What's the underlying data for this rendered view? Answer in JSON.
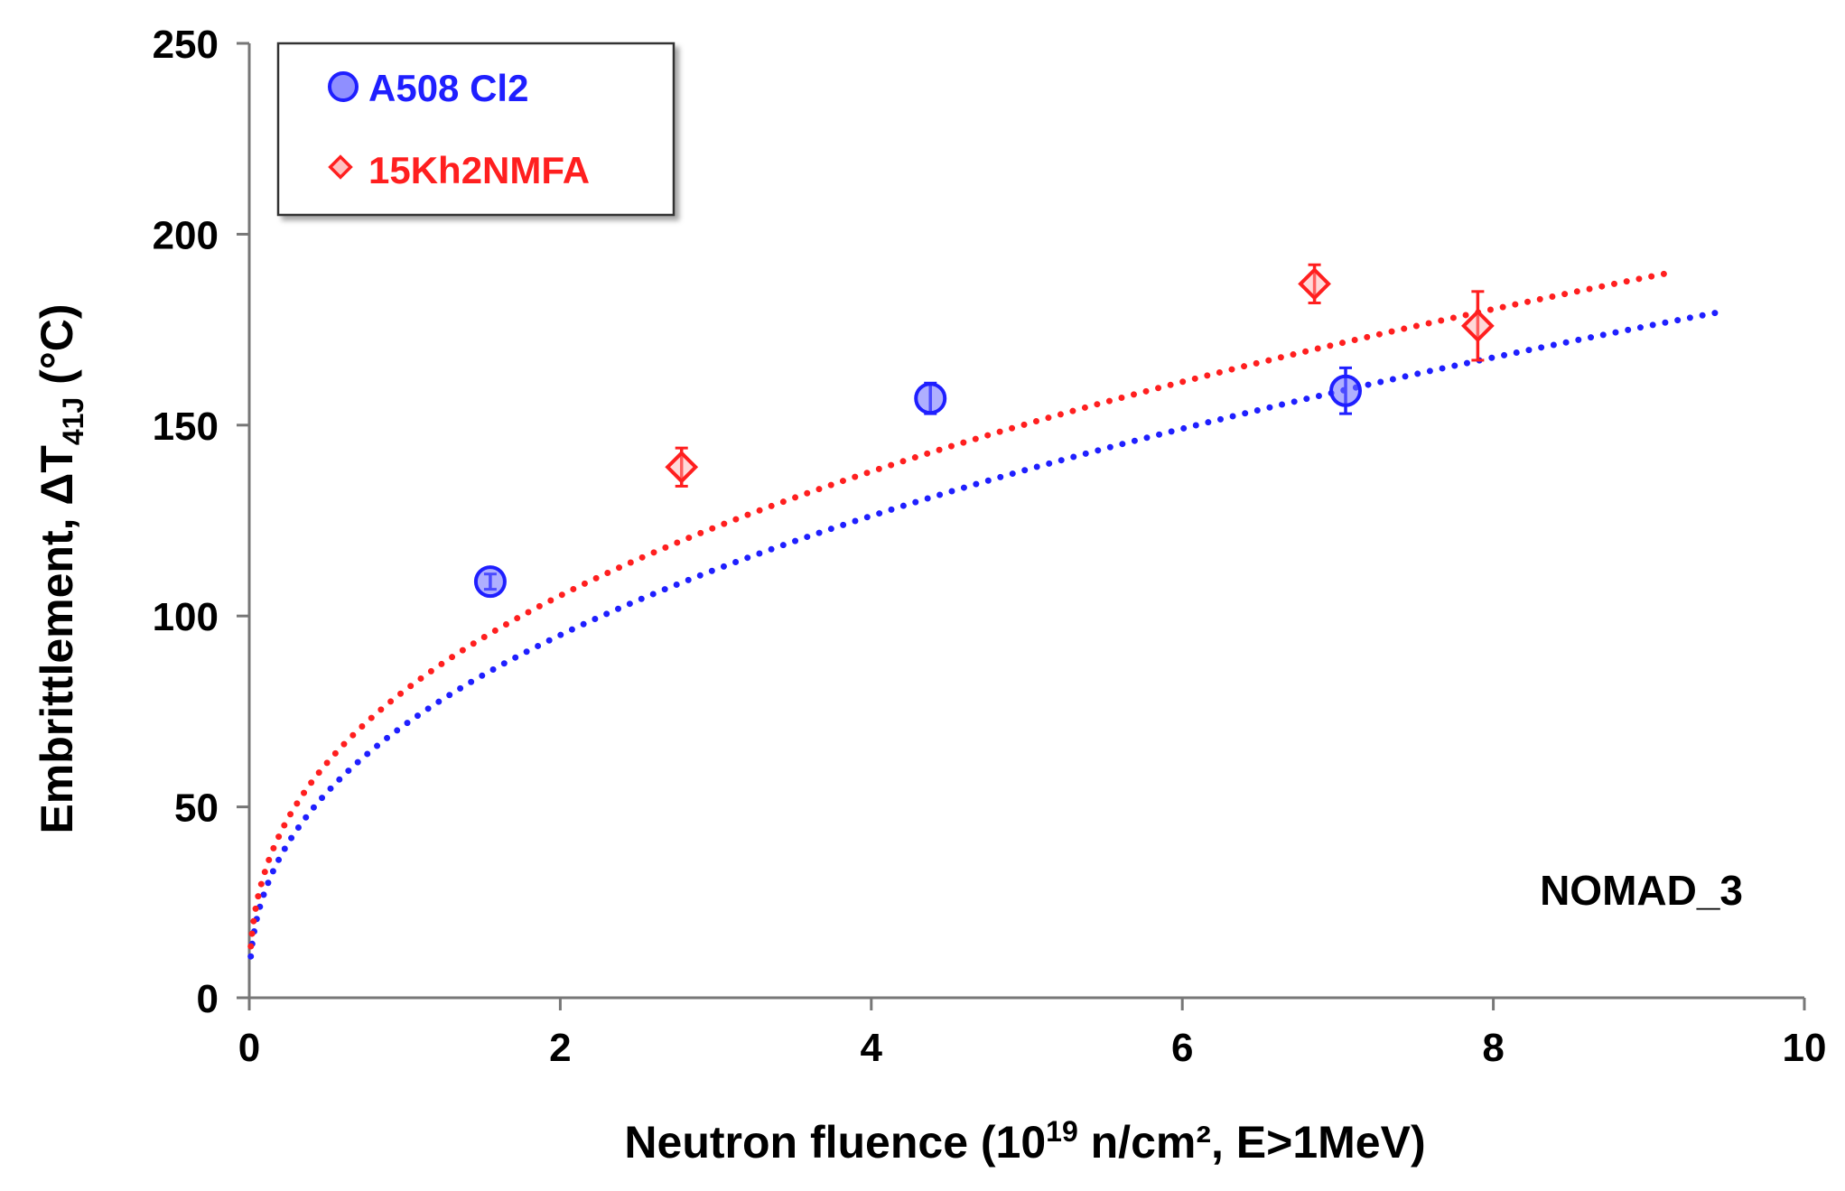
{
  "chart_data": {
    "type": "scatter",
    "title": "",
    "xlabel": {
      "prefix": "Neutron fluence (10",
      "sup": "19",
      "suffix": " n/cm², E>1MeV)"
    },
    "ylabel": {
      "prefix": "Embrittlement, ΔT",
      "sub": "41J",
      "suffix": " (°C)"
    },
    "xlim": [
      0,
      10
    ],
    "ylim": [
      0,
      250
    ],
    "xticks": [
      "0",
      "2",
      "4",
      "6",
      "8",
      "10"
    ],
    "yticks": [
      "0",
      "50",
      "100",
      "150",
      "200",
      "250"
    ],
    "grid": false,
    "legend_position": "top-left",
    "annotation": "NOMAD_3",
    "series": [
      {
        "name": "A508 Cl2",
        "color": "#1f1fff",
        "marker": "circle",
        "x": [
          1.55,
          4.38,
          7.05
        ],
        "y": [
          109,
          157,
          159
        ],
        "yerr": [
          2,
          4,
          6
        ],
        "trend": {
          "type": "power",
          "a": 71.5,
          "b": 0.41,
          "x_range": [
            0.01,
            9.45
          ]
        }
      },
      {
        "name": "15Kh2NMFA",
        "color": "#ff1f1f",
        "marker": "diamond",
        "x": [
          2.78,
          6.85,
          7.9
        ],
        "y": [
          139,
          187,
          176
        ],
        "yerr": [
          5,
          5,
          9
        ],
        "trend": {
          "type": "power",
          "a": 80.5,
          "b": 0.388,
          "x_range": [
            0.01,
            9.15
          ]
        }
      }
    ]
  }
}
